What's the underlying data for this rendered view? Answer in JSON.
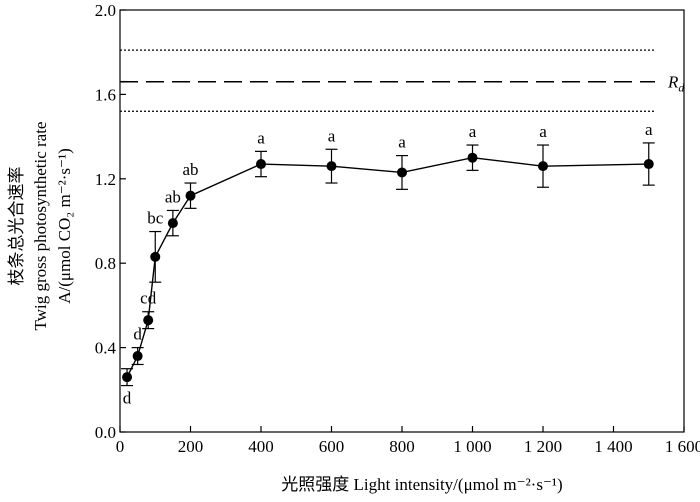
{
  "chart_data": {
    "type": "line",
    "x_axis": {
      "label": "光照强度 Light intensity/(μmol m⁻²·s⁻¹)",
      "range": [
        0,
        1600
      ],
      "ticks": [
        0,
        200,
        400,
        600,
        800,
        1000,
        1200,
        1400,
        1600
      ],
      "tick_labels": [
        "0",
        "200",
        "400",
        "600",
        "800",
        "1 000",
        "1 200",
        "1 400",
        "1 600"
      ]
    },
    "y_axis": {
      "label_lines": [
        "枝条总光合速率",
        "Twig gross photosynthetic rate",
        "A/(μmol CO₂ m⁻²·s⁻¹)"
      ],
      "range": [
        0,
        2.0
      ],
      "ticks": [
        0,
        0.4,
        0.8,
        1.2,
        1.6,
        2.0
      ],
      "tick_labels": [
        "0.0",
        "0.4",
        "0.8",
        "1.2",
        "1.6",
        "2.0"
      ]
    },
    "grid": false,
    "series": [
      {
        "points": [
          {
            "x": 20,
            "y": 0.26,
            "err": 0.04,
            "sig": "d",
            "sig_pos": "below"
          },
          {
            "x": 50,
            "y": 0.36,
            "err": 0.04,
            "sig": "d",
            "sig_pos": "above"
          },
          {
            "x": 80,
            "y": 0.53,
            "err": 0.04,
            "sig": "cd",
            "sig_pos": "above"
          },
          {
            "x": 100,
            "y": 0.83,
            "err": 0.12,
            "sig": "bc",
            "sig_pos": "above"
          },
          {
            "x": 150,
            "y": 0.99,
            "err": 0.06,
            "sig": "ab",
            "sig_pos": "above"
          },
          {
            "x": 200,
            "y": 1.12,
            "err": 0.06,
            "sig": "ab",
            "sig_pos": "above"
          },
          {
            "x": 400,
            "y": 1.27,
            "err": 0.06,
            "sig": "a",
            "sig_pos": "above"
          },
          {
            "x": 600,
            "y": 1.26,
            "err": 0.08,
            "sig": "a",
            "sig_pos": "above"
          },
          {
            "x": 800,
            "y": 1.23,
            "err": 0.08,
            "sig": "a",
            "sig_pos": "above"
          },
          {
            "x": 1000,
            "y": 1.3,
            "err": 0.06,
            "sig": "a",
            "sig_pos": "above"
          },
          {
            "x": 1200,
            "y": 1.26,
            "err": 0.1,
            "sig": "a",
            "sig_pos": "above"
          },
          {
            "x": 1500,
            "y": 1.27,
            "err": 0.1,
            "sig": "a",
            "sig_pos": "above"
          }
        ]
      }
    ],
    "reference": {
      "label": "R",
      "label_sub": "d",
      "mean": 1.66,
      "upper": 1.81,
      "lower": 1.52
    }
  }
}
